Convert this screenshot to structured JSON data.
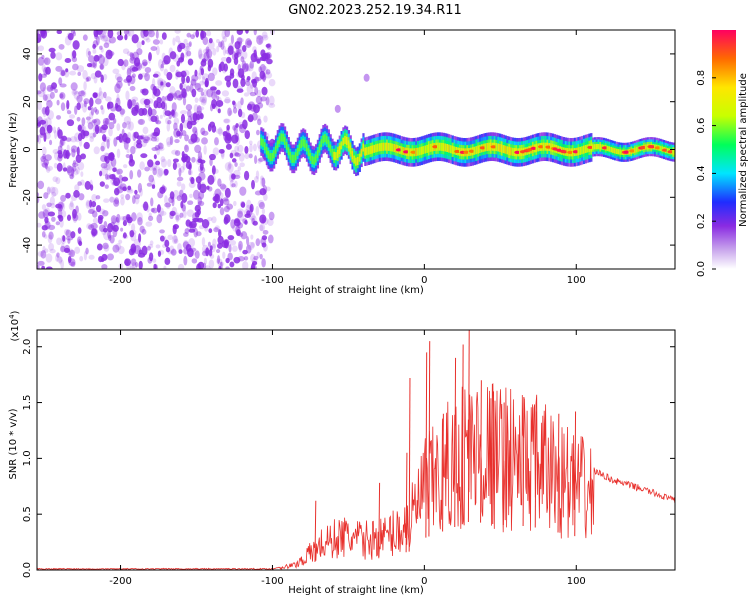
{
  "title": "GN02.2023.252.19.34.R11",
  "colors": {
    "snr_line": "#e8302c",
    "scatter_noise": "#8a2be2",
    "axis": "#000000"
  },
  "chart_data": [
    {
      "type": "heatmap",
      "name": "spectrogram",
      "xlabel": "Height of straight line (km)",
      "ylabel": "Frequency (Hz)",
      "xlim": [
        -255,
        165
      ],
      "ylim": [
        -50,
        50
      ],
      "xticks": [
        -200,
        -100,
        0,
        100
      ],
      "xtick_labels": [
        "-200",
        "-100",
        "0",
        "100"
      ],
      "yticks": [
        -40,
        -20,
        0,
        20,
        40
      ],
      "ytick_labels": [
        "-40",
        "-20",
        "0",
        "20",
        "40"
      ],
      "noise_region_x": [
        -255,
        -100
      ],
      "signal_band_center_hz": 0,
      "signal_band_halfwidth_hz": [
        6,
        4
      ],
      "signal_bumps": [
        {
          "x": -57,
          "freq": 17
        },
        {
          "x": -38,
          "freq": 30
        }
      ],
      "colorbar": {
        "label": "Normalized spectral amplitude",
        "range": [
          0.0,
          1.0
        ],
        "ticks": [
          0.0,
          0.2,
          0.4,
          0.6,
          0.8
        ],
        "tick_labels": [
          "0.0",
          "0.2",
          "0.4",
          "0.6",
          "0.8"
        ],
        "stops": [
          {
            "v": 0.0,
            "color": "#ffffff"
          },
          {
            "v": 0.08,
            "color": "#c9a6ec"
          },
          {
            "v": 0.18,
            "color": "#8a2be2"
          },
          {
            "v": 0.28,
            "color": "#1f2cff"
          },
          {
            "v": 0.4,
            "color": "#00e5ff"
          },
          {
            "v": 0.52,
            "color": "#00ff5a"
          },
          {
            "v": 0.64,
            "color": "#c8ff00"
          },
          {
            "v": 0.76,
            "color": "#ffe600"
          },
          {
            "v": 0.88,
            "color": "#ff6a00"
          },
          {
            "v": 1.0,
            "color": "#ff0060"
          }
        ]
      }
    },
    {
      "type": "line",
      "name": "snr",
      "xlabel": "Height of straight line (km)",
      "ylabel": "SNR (10 * v/v)",
      "yscale_label": "(x10",
      "yscale_exp": "4",
      "xlim": [
        -255,
        165
      ],
      "ylim": [
        0,
        2.15
      ],
      "xticks": [
        -200,
        -100,
        0,
        100
      ],
      "xtick_labels": [
        "-200",
        "-100",
        "0",
        "100"
      ],
      "yticks": [
        0.0,
        0.5,
        1.0,
        1.5,
        2.0
      ],
      "ytick_labels": [
        "0.0",
        "0.5",
        "1.0",
        "1.5",
        "2.0"
      ],
      "envelope": [
        {
          "x": -255,
          "y": 0.01
        },
        {
          "x": -100,
          "y": 0.01
        },
        {
          "x": -85,
          "y": 0.06
        },
        {
          "x": -68,
          "y": 0.3
        },
        {
          "x": -55,
          "y": 0.4
        },
        {
          "x": -40,
          "y": 0.35
        },
        {
          "x": -25,
          "y": 0.4
        },
        {
          "x": -10,
          "y": 0.55
        },
        {
          "x": 0,
          "y": 0.95
        },
        {
          "x": 15,
          "y": 1.2
        },
        {
          "x": 30,
          "y": 1.45
        },
        {
          "x": 50,
          "y": 1.35
        },
        {
          "x": 70,
          "y": 1.3
        },
        {
          "x": 85,
          "y": 1.15
        },
        {
          "x": 100,
          "y": 1.0
        },
        {
          "x": 110,
          "y": 0.9
        },
        {
          "x": 125,
          "y": 0.8
        },
        {
          "x": 145,
          "y": 0.72
        },
        {
          "x": 165,
          "y": 0.62
        }
      ],
      "spikes": [
        {
          "x": -72,
          "y": 0.62
        },
        {
          "x": -30,
          "y": 0.78
        },
        {
          "x": -12,
          "y": 1.05
        },
        {
          "x": -10,
          "y": 1.72
        },
        {
          "x": 1,
          "y": 1.95
        },
        {
          "x": 3,
          "y": 2.05
        },
        {
          "x": 12,
          "y": 1.4
        },
        {
          "x": 20,
          "y": 1.9
        },
        {
          "x": 25,
          "y": 2.02
        },
        {
          "x": 29,
          "y": 2.15
        },
        {
          "x": 37,
          "y": 1.7
        },
        {
          "x": 45,
          "y": 1.6
        },
        {
          "x": 52,
          "y": 1.5
        },
        {
          "x": 65,
          "y": 1.55
        },
        {
          "x": 73,
          "y": 1.42
        },
        {
          "x": 88,
          "y": 1.4
        },
        {
          "x": 99,
          "y": 1.42
        }
      ]
    }
  ]
}
